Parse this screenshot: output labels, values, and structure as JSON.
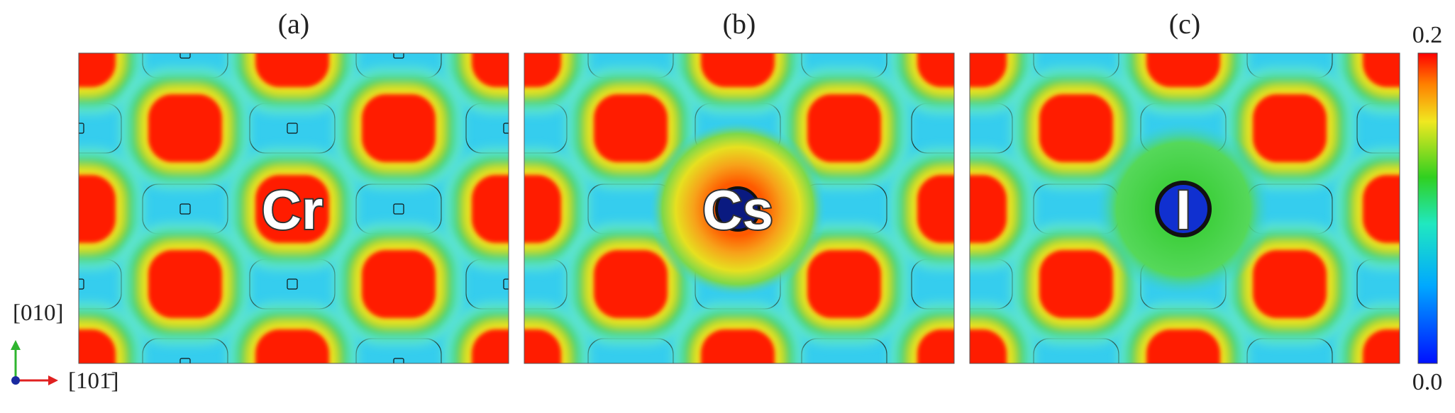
{
  "panels": [
    {
      "label": "(a)",
      "atom": "Cr"
    },
    {
      "label": "(b)",
      "atom": "Cs"
    },
    {
      "label": "(c)",
      "atom": "I"
    }
  ],
  "colorbar": {
    "max": "0.2",
    "min": "0.0"
  },
  "axes": {
    "vertical": "[010]",
    "horizontal": "[101̄]"
  }
}
